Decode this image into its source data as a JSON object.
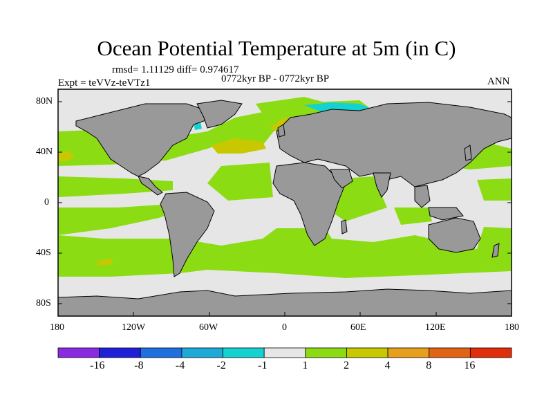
{
  "title": "Ocean Potential Temperature at 5m (in C)",
  "stats": "rmsd= 1.11129 diff= 0.974617",
  "expt": "Expt = teVVz-teVTz1",
  "period": "0772kyr BP - 0772kyr BP",
  "season": "ANN",
  "lat_labels": [
    "80N",
    "40N",
    "0",
    "40S",
    "80S"
  ],
  "lon_labels": [
    "180",
    "120W",
    "60W",
    "0",
    "60E",
    "120E",
    "180"
  ],
  "colorbar": {
    "labels": [
      "-16",
      "-8",
      "-4",
      "-2",
      "-1",
      "1",
      "2",
      "4",
      "8",
      "16"
    ],
    "colors": [
      "#8a2be2",
      "#2020d8",
      "#1e6fe0",
      "#1eaad8",
      "#14d2d2",
      "#e6e6e6",
      "#8cdc14",
      "#c8c800",
      "#e6a01e",
      "#e06414",
      "#e02d0a"
    ]
  },
  "map_colors": {
    "land": "#999999",
    "ocean_neutral": "#e6e6e6",
    "warm_1_2": "#8cdc14",
    "warm_2_4": "#c8c800",
    "cool": "#14d2d2"
  }
}
